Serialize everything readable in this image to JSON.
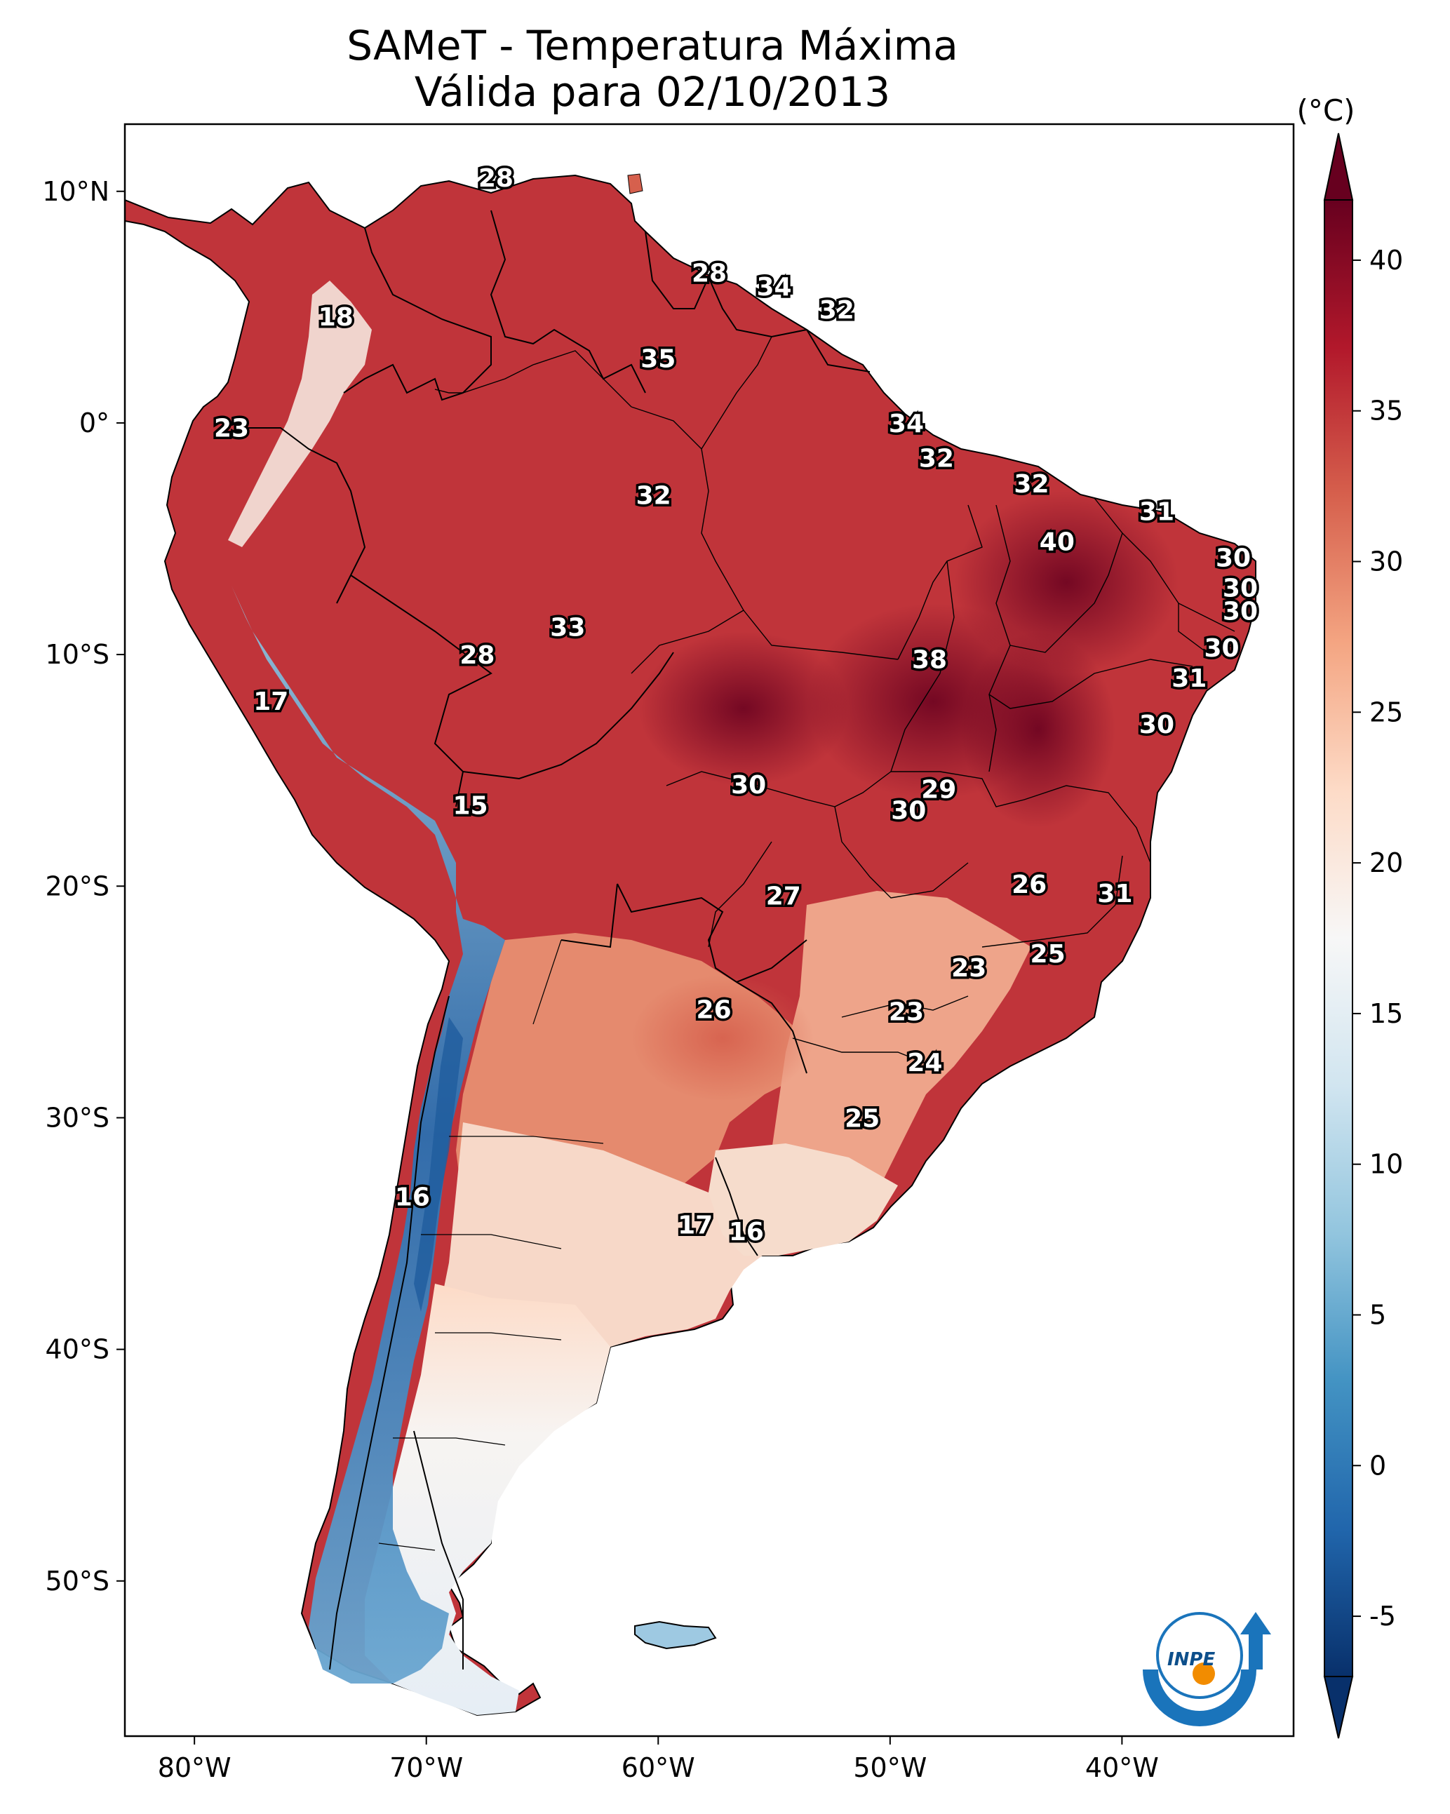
{
  "title": {
    "line1": "SAMeT - Temperatura Máxima",
    "line2": "Válida para 02/10/2013"
  },
  "colorbar": {
    "unit": "(°C)",
    "ticks": [
      "40",
      "35",
      "30",
      "25",
      "20",
      "15",
      "10",
      "5",
      "0",
      "-5"
    ],
    "range": [
      -7,
      42
    ],
    "colors": [
      "#08306b",
      "#2166ac",
      "#4393c3",
      "#92c5de",
      "#d1e5f0",
      "#f7f7f7",
      "#fddbc7",
      "#f4a582",
      "#d6604d",
      "#b2182b",
      "#67001f"
    ]
  },
  "axes": {
    "lon_labels": [
      "80°W",
      "70°W",
      "60°W",
      "50°W",
      "40°W"
    ],
    "lat_labels": [
      "10°N",
      "0°",
      "10°S",
      "20°S",
      "30°S",
      "40°S",
      "50°S"
    ]
  },
  "map_values": [
    {
      "value": "28",
      "lon": -67.0,
      "lat": 10.6
    },
    {
      "value": "28",
      "lon": -57.8,
      "lat": 6.5
    },
    {
      "value": "34",
      "lon": -55.0,
      "lat": 5.9
    },
    {
      "value": "32",
      "lon": -52.3,
      "lat": 4.9
    },
    {
      "value": "18",
      "lon": -73.9,
      "lat": 4.6
    },
    {
      "value": "35",
      "lon": -60.0,
      "lat": 2.8
    },
    {
      "value": "23",
      "lon": -78.4,
      "lat": -0.2
    },
    {
      "value": "34",
      "lon": -49.3,
      "lat": 0.0
    },
    {
      "value": "32",
      "lon": -48.0,
      "lat": -1.5
    },
    {
      "value": "32",
      "lon": -43.9,
      "lat": -2.6
    },
    {
      "value": "32",
      "lon": -60.2,
      "lat": -3.1
    },
    {
      "value": "31",
      "lon": -38.5,
      "lat": -3.8
    },
    {
      "value": "40",
      "lon": -42.8,
      "lat": -5.1
    },
    {
      "value": "30",
      "lon": -35.2,
      "lat": -5.8
    },
    {
      "value": "30",
      "lon": -34.9,
      "lat": -7.1
    },
    {
      "value": "30",
      "lon": -34.9,
      "lat": -8.1
    },
    {
      "value": "33",
      "lon": -63.9,
      "lat": -8.8
    },
    {
      "value": "30",
      "lon": -35.7,
      "lat": -9.7
    },
    {
      "value": "28",
      "lon": -67.8,
      "lat": -10.0
    },
    {
      "value": "38",
      "lon": -48.3,
      "lat": -10.2
    },
    {
      "value": "31",
      "lon": -37.1,
      "lat": -11.0
    },
    {
      "value": "17",
      "lon": -76.7,
      "lat": -12.0
    },
    {
      "value": "30",
      "lon": -38.5,
      "lat": -13.0
    },
    {
      "value": "30",
      "lon": -56.1,
      "lat": -15.6
    },
    {
      "value": "29",
      "lon": -47.9,
      "lat": -15.8
    },
    {
      "value": "30",
      "lon": -49.2,
      "lat": -16.7
    },
    {
      "value": "15",
      "lon": -68.1,
      "lat": -16.5
    },
    {
      "value": "26",
      "lon": -44.0,
      "lat": -19.9
    },
    {
      "value": "31",
      "lon": -40.3,
      "lat": -20.3
    },
    {
      "value": "27",
      "lon": -54.6,
      "lat": -20.4
    },
    {
      "value": "25",
      "lon": -43.2,
      "lat": -22.9
    },
    {
      "value": "23",
      "lon": -46.6,
      "lat": -23.5
    },
    {
      "value": "26",
      "lon": -57.6,
      "lat": -25.3
    },
    {
      "value": "23",
      "lon": -49.3,
      "lat": -25.4
    },
    {
      "value": "24",
      "lon": -48.5,
      "lat": -27.6
    },
    {
      "value": "25",
      "lon": -51.2,
      "lat": -30.0
    },
    {
      "value": "16",
      "lon": -70.6,
      "lat": -33.4
    },
    {
      "value": "17",
      "lon": -58.4,
      "lat": -34.6
    },
    {
      "value": "16",
      "lon": -56.2,
      "lat": -34.9
    }
  ],
  "logo": {
    "text": "INPE"
  }
}
